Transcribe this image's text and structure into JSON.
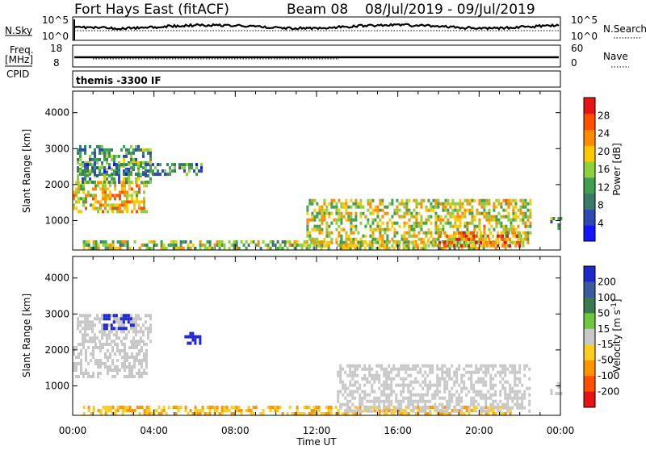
{
  "header": {
    "radar_title": "Fort Hays East (fitACF)",
    "beam": "Beam 08",
    "date_range": "08/Jul/2019 - 09/Jul/2019"
  },
  "noise_panel": {
    "left_label": "N.Sky",
    "right_label": "N.Search",
    "left_ticks": [
      "10^5",
      "10^0"
    ],
    "right_ticks": [
      "10^5",
      "10^0"
    ]
  },
  "freq_panel": {
    "left_label_1": "Freq.",
    "left_label_2": "[MHz]",
    "left_label_3": "CPID",
    "right_label": "Nave",
    "left_ticks": [
      "18",
      "8"
    ],
    "right_ticks": [
      "60",
      "0"
    ],
    "cpid_text": "themis -3300 IF"
  },
  "chart_data": [
    {
      "type": "heatmap",
      "name": "Power",
      "ylabel": "Slant Range [km]",
      "xlabel": "",
      "x_ticks": [
        "00:00",
        "04:00",
        "08:00",
        "12:00",
        "16:00",
        "20:00",
        "00:00"
      ],
      "xlim_hours": [
        0,
        24
      ],
      "y_ticks": [
        1000,
        2000,
        3000,
        4000
      ],
      "ylim": [
        180,
        4600
      ],
      "colorbar": {
        "label": "Power [dB]",
        "ticks": [
          4,
          8,
          12,
          16,
          20,
          24,
          28
        ],
        "range": [
          0,
          32
        ],
        "colors": [
          "#1414ff",
          "#2e48b4",
          "#3a7a6a",
          "#3fa050",
          "#8cd23c",
          "#ffc800",
          "#ff8c00",
          "#ff5000",
          "#e61414"
        ]
      },
      "regions": [
        {
          "t0": 0.0,
          "t1": 3.6,
          "r0": 1250,
          "r1": 2100,
          "level": 20
        },
        {
          "t0": 0.2,
          "t1": 3.8,
          "r0": 2100,
          "r1": 3100,
          "level": 12
        },
        {
          "t0": 0.2,
          "t1": 6.3,
          "r0": 2300,
          "r1": 2600,
          "level": 10
        },
        {
          "t0": 0.5,
          "t1": 21.5,
          "r0": 200,
          "r1": 450,
          "level": 16
        },
        {
          "t0": 11.5,
          "t1": 22.5,
          "r0": 300,
          "r1": 1600,
          "level": 18
        },
        {
          "t0": 18.0,
          "t1": 22.0,
          "r0": 300,
          "r1": 700,
          "level": 24
        },
        {
          "t0": 23.5,
          "t1": 24.0,
          "r0": 800,
          "r1": 1100,
          "level": 12
        }
      ]
    },
    {
      "type": "heatmap",
      "name": "Velocity",
      "ylabel": "Slant Range [km]",
      "xlabel": "Time UT",
      "x_ticks": [
        "00:00",
        "04:00",
        "08:00",
        "12:00",
        "16:00",
        "20:00",
        "00:00"
      ],
      "xlim_hours": [
        0,
        24
      ],
      "y_ticks": [
        1000,
        2000,
        3000,
        4000
      ],
      "ylim": [
        180,
        4600
      ],
      "colorbar": {
        "label": "Velocity [m s^-1]",
        "ticks": [
          "200",
          "100",
          "50",
          "15",
          "-15",
          "-50",
          "-100",
          "-200"
        ],
        "colors": [
          "#1e28c8",
          "#3c5aa0",
          "#3a7a50",
          "#6ec83c",
          "#c8c8c8",
          "#ffcc20",
          "#ff9600",
          "#ff5000",
          "#e61414"
        ]
      },
      "regions": [
        {
          "t0": 0.0,
          "t1": 3.6,
          "r0": 1250,
          "r1": 2200,
          "level": 0
        },
        {
          "t0": 0.2,
          "t1": 3.8,
          "r0": 2200,
          "r1": 3000,
          "level": 0
        },
        {
          "t0": 1.5,
          "t1": 3.0,
          "r0": 2600,
          "r1": 3000,
          "level": 200
        },
        {
          "t0": 5.5,
          "t1": 6.3,
          "r0": 2200,
          "r1": 2500,
          "level": 200
        },
        {
          "t0": 0.5,
          "t1": 21.5,
          "r0": 200,
          "r1": 450,
          "level": -30
        },
        {
          "t0": 13.0,
          "t1": 22.5,
          "r0": 300,
          "r1": 1600,
          "level": 0
        },
        {
          "t0": 23.5,
          "t1": 24.0,
          "r0": 800,
          "r1": 1100,
          "level": 0
        }
      ]
    }
  ]
}
